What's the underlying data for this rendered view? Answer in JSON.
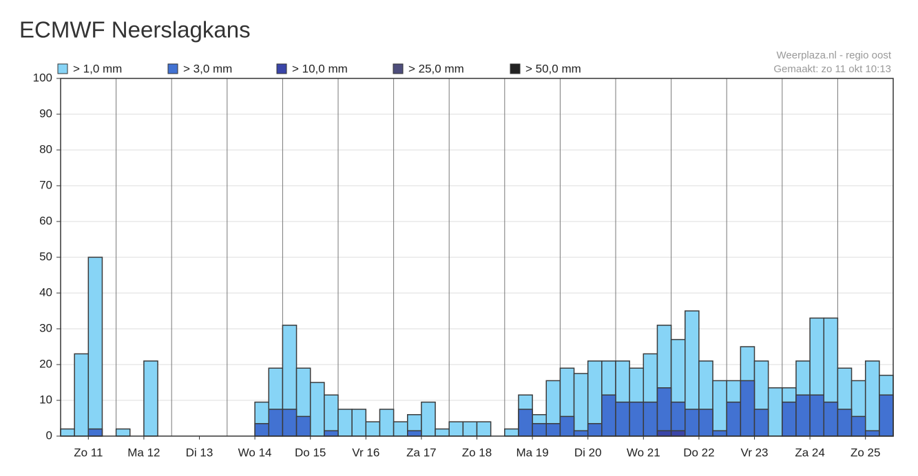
{
  "chart_data": {
    "type": "overlap-bar",
    "title": "ECMWF Neerslagkans",
    "credits": [
      "Weerplaza.nl - regio oost",
      "Gemaakt: zo 11 okt 10:13"
    ],
    "categories": [
      "Zo 11",
      "Ma 12",
      "Di 13",
      "Wo 14",
      "Do 15",
      "Vr 16",
      "Za 17",
      "Zo 18",
      "Ma 19",
      "Di 20",
      "Wo 21",
      "Do 22",
      "Vr 23",
      "Za 24",
      "Zo 25"
    ],
    "series": [
      {
        "name": "> 1,0 mm",
        "color": "#87d4f6",
        "values": [
          [
            2,
            23,
            50,
            0
          ],
          [
            2,
            0,
            21,
            0
          ],
          [
            0,
            0,
            0,
            0
          ],
          [
            0,
            0,
            9.5,
            19
          ],
          [
            31,
            19,
            15,
            11.5
          ],
          [
            7.5,
            7.5,
            4,
            7.5
          ],
          [
            4,
            6,
            9.5,
            2
          ],
          [
            4,
            4,
            4,
            0
          ],
          [
            2,
            11.5,
            6,
            15.5
          ],
          [
            19,
            17.5,
            21,
            21
          ],
          [
            21,
            19,
            23,
            31
          ],
          [
            27,
            35,
            21,
            15.5
          ],
          [
            15.5,
            25,
            21,
            13.5
          ],
          [
            13.5,
            21,
            33,
            33
          ],
          [
            19,
            15.5,
            21,
            17
          ]
        ]
      },
      {
        "name": "> 3,0 mm",
        "color": "#4272d2",
        "values": [
          [
            0,
            0,
            2,
            0
          ],
          [
            0,
            0,
            0,
            0
          ],
          [
            0,
            0,
            0,
            0
          ],
          [
            0,
            0,
            3.5,
            7.5
          ],
          [
            7.5,
            5.5,
            0,
            1.5
          ],
          [
            0,
            0,
            0,
            0
          ],
          [
            0,
            1.5,
            0,
            0
          ],
          [
            0,
            0,
            0,
            0
          ],
          [
            0,
            7.5,
            3.5,
            3.5
          ],
          [
            5.5,
            1.5,
            3.5,
            11.5
          ],
          [
            9.5,
            9.5,
            9.5,
            13.5
          ],
          [
            9.5,
            7.5,
            7.5,
            1.5
          ],
          [
            9.5,
            15.5,
            7.5,
            0
          ],
          [
            9.5,
            11.5,
            11.5,
            9.5
          ],
          [
            7.5,
            5.5,
            1.5,
            11.5
          ]
        ]
      },
      {
        "name": "> 10,0 mm",
        "color": "#3a45a8",
        "values": [
          [
            0,
            0,
            0,
            0
          ],
          [
            0,
            0,
            0,
            0
          ],
          [
            0,
            0,
            0,
            0
          ],
          [
            0,
            0,
            0,
            0
          ],
          [
            0,
            0,
            0,
            0
          ],
          [
            0,
            0,
            0,
            0
          ],
          [
            0,
            0,
            0,
            0
          ],
          [
            0,
            0,
            0,
            0
          ],
          [
            0,
            0,
            0,
            0
          ],
          [
            0,
            0,
            0,
            0
          ],
          [
            0,
            0,
            0,
            1.5
          ],
          [
            1.5,
            0,
            0,
            0
          ],
          [
            0,
            0,
            0,
            0
          ],
          [
            0,
            0,
            0,
            0
          ],
          [
            0,
            0,
            0,
            0
          ]
        ]
      },
      {
        "name": "> 25,0 mm",
        "color": "#4e4e7c",
        "values": [
          [
            0,
            0,
            0,
            0
          ],
          [
            0,
            0,
            0,
            0
          ],
          [
            0,
            0,
            0,
            0
          ],
          [
            0,
            0,
            0,
            0
          ],
          [
            0,
            0,
            0,
            0
          ],
          [
            0,
            0,
            0,
            0
          ],
          [
            0,
            0,
            0,
            0
          ],
          [
            0,
            0,
            0,
            0
          ],
          [
            0,
            0,
            0,
            0
          ],
          [
            0,
            0,
            0,
            0
          ],
          [
            0,
            0,
            0,
            0
          ],
          [
            0,
            0,
            0,
            0
          ],
          [
            0,
            0,
            0,
            0
          ],
          [
            0,
            0,
            0,
            0
          ],
          [
            0,
            0,
            0,
            0
          ]
        ]
      },
      {
        "name": "> 50,0 mm",
        "color": "#222222",
        "values": [
          [
            0,
            0,
            0,
            0
          ],
          [
            0,
            0,
            0,
            0
          ],
          [
            0,
            0,
            0,
            0
          ],
          [
            0,
            0,
            0,
            0
          ],
          [
            0,
            0,
            0,
            0
          ],
          [
            0,
            0,
            0,
            0
          ],
          [
            0,
            0,
            0,
            0
          ],
          [
            0,
            0,
            0,
            0
          ],
          [
            0,
            0,
            0,
            0
          ],
          [
            0,
            0,
            0,
            0
          ],
          [
            0,
            0,
            0,
            0
          ],
          [
            0,
            0,
            0,
            0
          ],
          [
            0,
            0,
            0,
            0
          ],
          [
            0,
            0,
            0,
            0
          ],
          [
            0,
            0,
            0,
            0
          ]
        ]
      }
    ],
    "ylim": [
      0,
      100
    ],
    "yticks": [
      0,
      10,
      20,
      30,
      40,
      50,
      60,
      70,
      80,
      90,
      100
    ],
    "grid": true
  }
}
